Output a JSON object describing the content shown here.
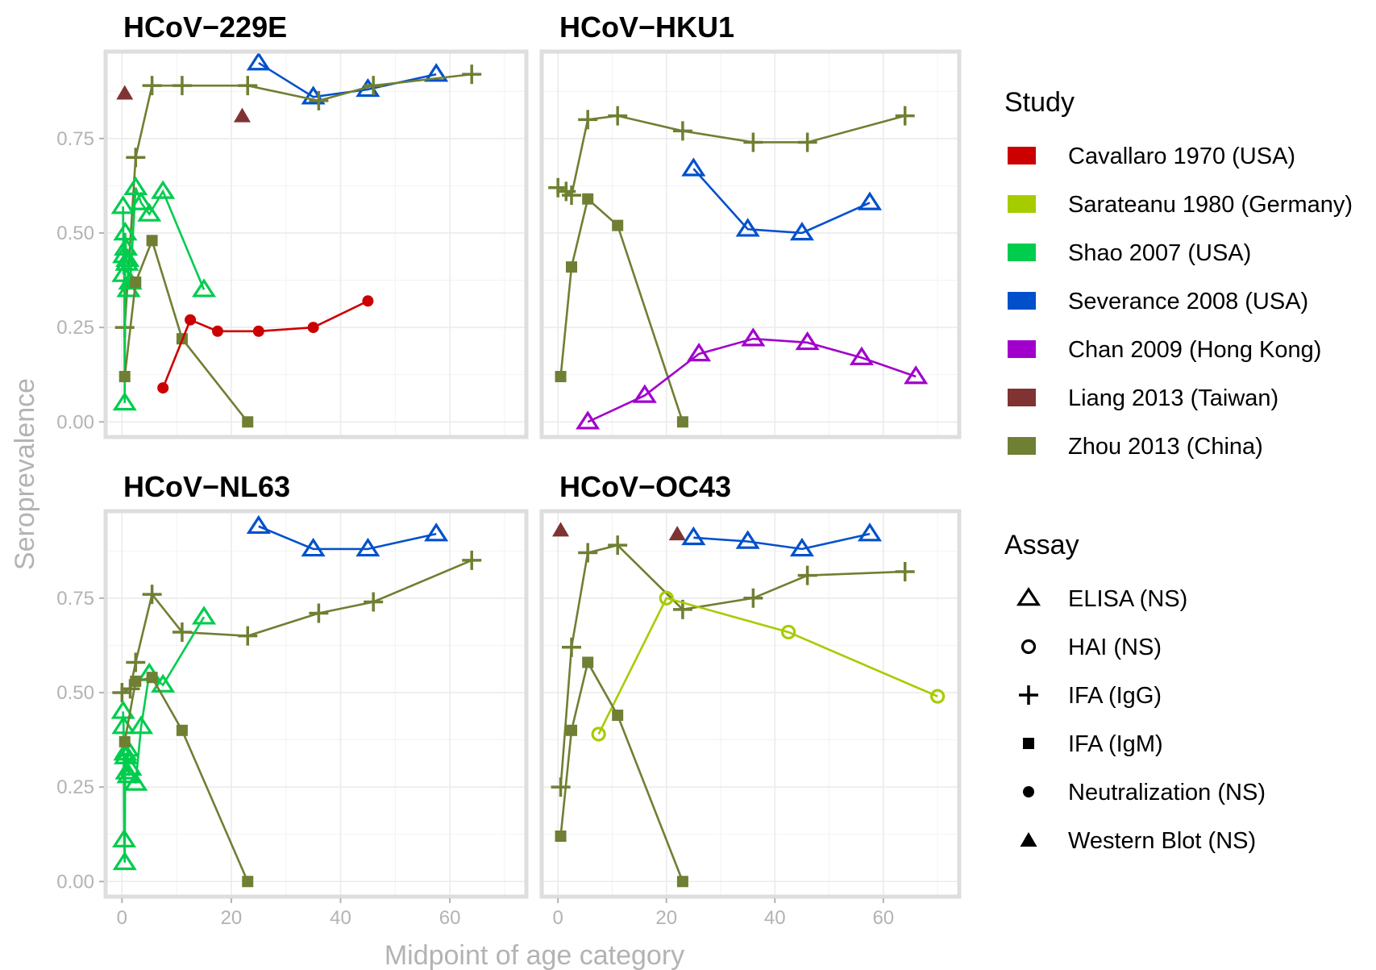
{
  "chart_data": {
    "type": "line",
    "xlabel": "Midpoint of age category",
    "ylabel": "Seroprevalence",
    "xlim": [
      -3,
      74
    ],
    "ylim": [
      -0.04,
      0.98
    ],
    "x_ticks": [
      0,
      20,
      40,
      60
    ],
    "x_tick_labels": [
      "0",
      "20",
      "40",
      "60"
    ],
    "y_ticks": [
      0,
      0.25,
      0.5,
      0.75
    ],
    "y_tick_labels": [
      "0.00",
      "0.25",
      "0.50",
      "0.75"
    ],
    "grid": true,
    "legend_position": "right",
    "study_legend": {
      "title": "Study",
      "items": [
        {
          "label": "Cavallaro 1970 (USA)",
          "color": "#CC0000"
        },
        {
          "label": "Sarateanu 1980 (Germany)",
          "color": "#A6CC00"
        },
        {
          "label": "Shao 2007 (USA)",
          "color": "#00CC4E"
        },
        {
          "label": "Severance 2008 (USA)",
          "color": "#0050CC"
        },
        {
          "label": "Chan 2009 (Hong Kong)",
          "color": "#A100CC"
        },
        {
          "label": "Liang 2013 (Taiwan)",
          "color": "#7F3333"
        },
        {
          "label": "Zhou 2013 (China)",
          "color": "#6F7F33"
        }
      ]
    },
    "assay_legend": {
      "title": "Assay",
      "items": [
        {
          "label": "ELISA (NS)",
          "shape": "triangle-open"
        },
        {
          "label": "HAI (NS)",
          "shape": "circle-open"
        },
        {
          "label": "IFA (IgG)",
          "shape": "plus"
        },
        {
          "label": "IFA (IgM)",
          "shape": "square"
        },
        {
          "label": "Neutralization (NS)",
          "shape": "circle"
        },
        {
          "label": "Western Blot (NS)",
          "shape": "triangle"
        }
      ]
    },
    "panels": [
      {
        "title": "HCoV−229E",
        "series": [
          {
            "study": 3,
            "shape": "triangle-open",
            "x": [
              25,
              35,
              45,
              57.5
            ],
            "y": [
              0.95,
              0.86,
              0.88,
              0.92
            ]
          },
          {
            "study": 6,
            "shape": "plus",
            "x": [
              0.5,
              2.5,
              5.5,
              11,
              23,
              36,
              46,
              64
            ],
            "y": [
              0.25,
              0.7,
              0.89,
              0.89,
              0.89,
              0.85,
              0.89,
              0.92
            ]
          },
          {
            "study": 5,
            "shape": "triangle",
            "x": [
              0.5,
              22
            ],
            "y": [
              0.87,
              0.81
            ],
            "lines": false
          },
          {
            "study": 2,
            "shape": "triangle-open",
            "x": [
              0.2,
              0.3,
              0.4,
              0.5,
              0.6,
              0.7,
              0.9,
              1.0,
              1.2,
              1.5,
              2.5,
              3.5,
              5,
              7.5,
              15
            ],
            "y": [
              0.57,
              0.39,
              0.44,
              0.05,
              0.5,
              0.46,
              0.42,
              0.43,
              0.35,
              0.37,
              0.62,
              0.58,
              0.55,
              0.61,
              0.35
            ]
          },
          {
            "study": 6,
            "shape": "square",
            "x": [
              0.5,
              2.5,
              5.5,
              11,
              23
            ],
            "y": [
              0.12,
              0.37,
              0.48,
              0.22,
              0.0
            ]
          },
          {
            "study": 0,
            "shape": "circle",
            "x": [
              7.5,
              12.5,
              17.5,
              25,
              35,
              45
            ],
            "y": [
              0.09,
              0.27,
              0.24,
              0.24,
              0.25,
              0.32
            ]
          }
        ]
      },
      {
        "title": "HCoV−HKU1",
        "series": [
          {
            "study": 6,
            "shape": "plus",
            "x": [
              0,
              1.5,
              2.5,
              5.5,
              11,
              23,
              36,
              46,
              64
            ],
            "y": [
              0.62,
              0.61,
              0.6,
              0.8,
              0.81,
              0.77,
              0.74,
              0.74,
              0.81
            ]
          },
          {
            "study": 6,
            "shape": "square",
            "x": [
              0.5,
              2.5,
              5.5,
              11,
              23
            ],
            "y": [
              0.12,
              0.41,
              0.59,
              0.52,
              0.0
            ]
          },
          {
            "study": 3,
            "shape": "triangle-open",
            "x": [
              25,
              35,
              45,
              57.5
            ],
            "y": [
              0.67,
              0.51,
              0.5,
              0.58
            ]
          },
          {
            "study": 4,
            "shape": "triangle-open",
            "x": [
              5.5,
              16,
              26,
              36,
              46,
              56,
              66
            ],
            "y": [
              0.0,
              0.07,
              0.18,
              0.22,
              0.21,
              0.17,
              0.12
            ]
          }
        ]
      },
      {
        "title": "HCoV−NL63",
        "series": [
          {
            "study": 3,
            "shape": "triangle-open",
            "x": [
              25,
              35,
              45,
              57.5
            ],
            "y": [
              0.94,
              0.88,
              0.88,
              0.92
            ]
          },
          {
            "study": 6,
            "shape": "plus",
            "x": [
              0,
              1.5,
              2.5,
              5.5,
              11,
              23,
              36,
              46,
              64
            ],
            "y": [
              0.5,
              0.51,
              0.58,
              0.76,
              0.66,
              0.65,
              0.71,
              0.74,
              0.85
            ]
          },
          {
            "study": 2,
            "shape": "triangle-open",
            "x": [
              0.2,
              0.3,
              0.4,
              0.5,
              0.6,
              0.7,
              0.9,
              1.0,
              1.2,
              1.5,
              2.5,
              3.5,
              5,
              7.5,
              15
            ],
            "y": [
              0.45,
              0.41,
              0.11,
              0.05,
              0.34,
              0.33,
              0.29,
              0.35,
              0.28,
              0.3,
              0.26,
              0.41,
              0.55,
              0.52,
              0.7
            ]
          },
          {
            "study": 6,
            "shape": "square",
            "x": [
              0.5,
              2.5,
              5.5,
              11,
              23
            ],
            "y": [
              0.37,
              0.53,
              0.54,
              0.4,
              0.0
            ]
          }
        ]
      },
      {
        "title": "HCoV−OC43",
        "series": [
          {
            "study": 5,
            "shape": "triangle",
            "x": [
              0.5,
              22
            ],
            "y": [
              0.93,
              0.92
            ],
            "lines": false
          },
          {
            "study": 3,
            "shape": "triangle-open",
            "x": [
              25,
              35,
              45,
              57.5
            ],
            "y": [
              0.91,
              0.9,
              0.88,
              0.92
            ]
          },
          {
            "study": 6,
            "shape": "plus",
            "x": [
              0.5,
              2.5,
              5.5,
              11,
              23,
              36,
              46,
              64
            ],
            "y": [
              0.25,
              0.62,
              0.87,
              0.89,
              0.72,
              0.75,
              0.81,
              0.82
            ]
          },
          {
            "study": 1,
            "shape": "circle-open",
            "x": [
              7.5,
              20,
              42.5,
              70
            ],
            "y": [
              0.39,
              0.75,
              0.66,
              0.49
            ]
          },
          {
            "study": 6,
            "shape": "square",
            "x": [
              0.5,
              2.5,
              5.5,
              11,
              23
            ],
            "y": [
              0.12,
              0.4,
              0.58,
              0.44,
              0.0
            ]
          }
        ]
      }
    ]
  }
}
